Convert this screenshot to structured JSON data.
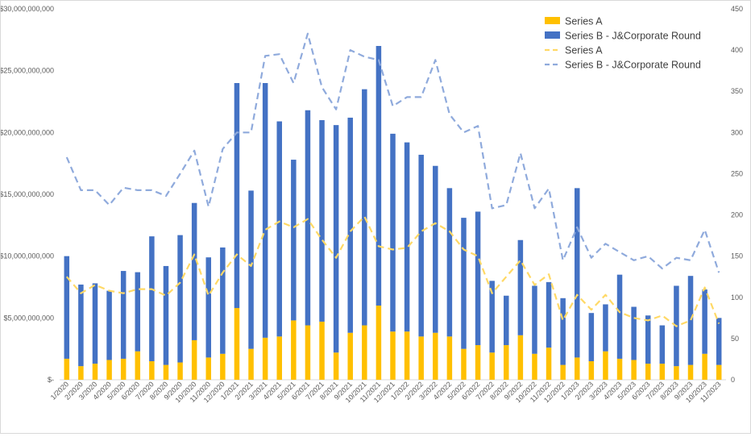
{
  "chart_data": {
    "type": "bar",
    "stacked": true,
    "categories": [
      "1/2020",
      "2/2020",
      "3/2020",
      "4/2020",
      "5/2020",
      "6/2020",
      "7/2020",
      "8/2020",
      "9/2020",
      "10/2020",
      "11/2020",
      "12/2020",
      "1/2021",
      "2/2021",
      "3/2021",
      "4/2021",
      "5/2021",
      "6/2021",
      "7/2021",
      "8/2021",
      "9/2021",
      "10/2021",
      "11/2021",
      "12/2021",
      "1/2022",
      "2/2022",
      "3/2022",
      "4/2022",
      "5/2022",
      "6/2022",
      "7/2022",
      "8/2022",
      "9/2022",
      "10/2022",
      "11/2022",
      "12/2022",
      "1/2023",
      "2/2023",
      "3/2023",
      "4/2023",
      "5/2023",
      "6/2023",
      "7/2023",
      "8/2023",
      "9/2023",
      "10/2023",
      "11/2023"
    ],
    "series": [
      {
        "name": "Series A",
        "type": "bar",
        "axis": "left",
        "color": "#FFC000",
        "values": [
          1700000000,
          1100000000,
          1300000000,
          1600000000,
          1700000000,
          2300000000,
          1500000000,
          1200000000,
          1400000000,
          3200000000,
          1800000000,
          2100000000,
          5800000000,
          2500000000,
          3400000000,
          3500000000,
          4800000000,
          4400000000,
          4700000000,
          2200000000,
          3800000000,
          4400000000,
          6000000000,
          3900000000,
          3900000000,
          3500000000,
          3800000000,
          3500000000,
          2500000000,
          2800000000,
          2200000000,
          2800000000,
          3600000000,
          2100000000,
          2600000000,
          1200000000,
          1800000000,
          1500000000,
          2300000000,
          1700000000,
          1600000000,
          1300000000,
          1300000000,
          1100000000,
          1200000000,
          2100000000,
          1200000000
        ]
      },
      {
        "name": "Series B - J&Corporate Round",
        "type": "bar",
        "axis": "left",
        "color": "#4472C4",
        "values": [
          8300000000,
          6600000000,
          6500000000,
          5600000000,
          7100000000,
          6400000000,
          10100000000,
          8000000000,
          10300000000,
          11100000000,
          8100000000,
          8600000000,
          18200000000,
          12800000000,
          20600000000,
          17400000000,
          13000000000,
          17400000000,
          16300000000,
          18400000000,
          17400000000,
          19100000000,
          21000000000,
          16000000000,
          15300000000,
          14700000000,
          13500000000,
          12000000000,
          10600000000,
          10800000000,
          5800000000,
          4000000000,
          7700000000,
          5500000000,
          5300000000,
          5400000000,
          13700000000,
          3900000000,
          3800000000,
          6800000000,
          4300000000,
          3900000000,
          3100000000,
          6500000000,
          7200000000,
          5200000000,
          3800000000
        ]
      },
      {
        "name": "Series A",
        "type": "line",
        "axis": "right",
        "color": "#FFD966",
        "dash": true,
        "values": [
          125,
          105,
          115,
          108,
          105,
          110,
          110,
          102,
          118,
          152,
          102,
          130,
          152,
          138,
          182,
          192,
          185,
          195,
          170,
          148,
          180,
          198,
          162,
          158,
          160,
          180,
          190,
          180,
          158,
          150,
          105,
          125,
          145,
          115,
          128,
          72,
          103,
          85,
          103,
          82,
          75,
          72,
          78,
          65,
          72,
          112,
          68
        ]
      },
      {
        "name": "Series B - J&Corporate Round",
        "type": "line",
        "axis": "right",
        "color": "#8FAADC",
        "dash": true,
        "values": [
          270,
          230,
          230,
          212,
          233,
          230,
          230,
          223,
          250,
          278,
          210,
          280,
          300,
          300,
          393,
          395,
          360,
          420,
          355,
          328,
          400,
          392,
          388,
          332,
          343,
          343,
          388,
          322,
          300,
          308,
          208,
          212,
          275,
          208,
          232,
          145,
          185,
          148,
          165,
          155,
          145,
          150,
          135,
          148,
          145,
          182,
          130
        ]
      }
    ],
    "ylim_left": [
      0,
      30000000000
    ],
    "ylim_right": [
      0,
      450
    ],
    "y_left_ticks": [
      "$-",
      "$5,000,000,000",
      "$10,000,000,000",
      "$15,000,000,000",
      "$20,000,000,000",
      "$25,000,000,000",
      "$30,000,000,000"
    ],
    "y_right_ticks": [
      "0",
      "50",
      "100",
      "150",
      "200",
      "250",
      "300",
      "350",
      "400",
      "450"
    ],
    "title": "",
    "xlabel": "",
    "ylabel": "",
    "grid": false,
    "legend_position": "top-right",
    "legend": [
      {
        "label": "Series A",
        "kind": "bar",
        "color": "#FFC000"
      },
      {
        "label": "Series B - J&Corporate Round",
        "kind": "bar",
        "color": "#4472C4"
      },
      {
        "label": "Series A",
        "kind": "line",
        "color": "#FFD966"
      },
      {
        "label": "Series B - J&Corporate Round",
        "kind": "line",
        "color": "#8FAADC"
      }
    ]
  }
}
